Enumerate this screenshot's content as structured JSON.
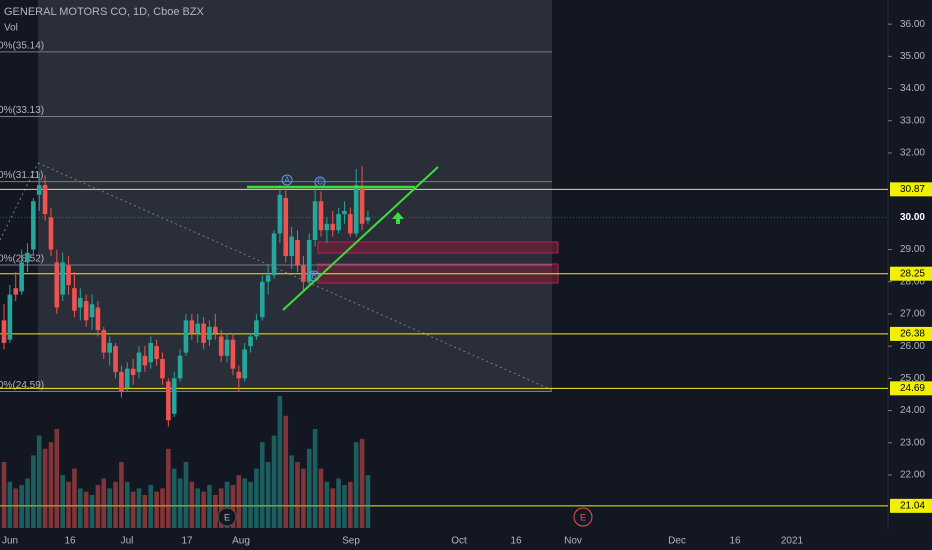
{
  "chart_data": {
    "type": "candlestick",
    "title": "GENERAL MOTORS CO, 1D, Cboe BZX",
    "subtitle": "Vol",
    "ylim": [
      20.29,
      36.75
    ],
    "yticks": [
      {
        "value": 36,
        "label": "36.00"
      },
      {
        "value": 35,
        "label": "35.00"
      },
      {
        "value": 34,
        "label": "34.00"
      },
      {
        "value": 33,
        "label": "33.00"
      },
      {
        "value": 32,
        "label": "32.00"
      },
      {
        "value": 29,
        "label": "29.00"
      },
      {
        "value": 28,
        "label": "28.00"
      },
      {
        "value": 27,
        "label": "27.00"
      },
      {
        "value": 26,
        "label": "26.00"
      },
      {
        "value": 25,
        "label": "25.00"
      },
      {
        "value": 24,
        "label": "24.00"
      },
      {
        "value": 23,
        "label": "23.00"
      },
      {
        "value": 22,
        "label": "22.00"
      }
    ],
    "xtick_labels": [
      "Jun",
      "16",
      "Jul",
      "17",
      "Aug",
      "Sep",
      "Oct",
      "16",
      "Nov",
      "Dec",
      "16",
      "2021"
    ],
    "up_color": "#26a69a",
    "down_color": "#ef5350",
    "candles": [
      [
        26.8,
        27.3,
        25.9,
        26.1
      ],
      [
        26.2,
        27.9,
        26.1,
        27.6
      ],
      [
        27.8,
        28.3,
        27.4,
        27.6
      ],
      [
        27.7,
        29.0,
        27.6,
        28.6
      ],
      [
        28.6,
        29.2,
        28.3,
        28.9
      ],
      [
        29.0,
        30.6,
        28.8,
        30.5
      ],
      [
        30.7,
        31.4,
        30.2,
        31.0
      ],
      [
        31.0,
        31.3,
        29.9,
        30.1
      ],
      [
        30.0,
        30.3,
        28.8,
        29.0
      ],
      [
        28.6,
        29.0,
        27.0,
        27.2
      ],
      [
        27.6,
        28.9,
        27.4,
        28.6
      ],
      [
        28.5,
        28.8,
        27.6,
        27.9
      ],
      [
        27.8,
        28.3,
        26.9,
        27.1
      ],
      [
        27.2,
        27.8,
        26.8,
        27.5
      ],
      [
        27.4,
        27.6,
        26.6,
        26.8
      ],
      [
        26.9,
        27.6,
        26.5,
        27.3
      ],
      [
        27.2,
        27.4,
        26.3,
        26.5
      ],
      [
        26.5,
        26.6,
        25.6,
        25.8
      ],
      [
        25.8,
        26.3,
        25.4,
        26.1
      ],
      [
        26.0,
        26.1,
        25.0,
        25.2
      ],
      [
        25.2,
        25.4,
        24.4,
        24.6
      ],
      [
        24.7,
        25.5,
        24.6,
        25.3
      ],
      [
        25.3,
        25.6,
        24.8,
        25.1
      ],
      [
        25.2,
        26.0,
        25.0,
        25.8
      ],
      [
        25.7,
        26.0,
        25.2,
        25.4
      ],
      [
        25.5,
        26.3,
        25.3,
        26.1
      ],
      [
        26.0,
        26.2,
        25.4,
        25.6
      ],
      [
        25.6,
        25.8,
        24.8,
        25.0
      ],
      [
        24.9,
        25.0,
        23.5,
        23.7
      ],
      [
        23.9,
        25.2,
        23.8,
        25.0
      ],
      [
        25.0,
        25.9,
        24.9,
        25.7
      ],
      [
        25.8,
        27.0,
        25.7,
        26.8
      ],
      [
        26.8,
        27.0,
        26.2,
        26.4
      ],
      [
        26.4,
        27.0,
        26.1,
        26.7
      ],
      [
        26.7,
        26.9,
        25.9,
        26.1
      ],
      [
        26.2,
        26.8,
        26.0,
        26.6
      ],
      [
        26.6,
        27.0,
        26.2,
        26.4
      ],
      [
        26.3,
        26.5,
        25.5,
        25.7
      ],
      [
        25.7,
        26.4,
        25.5,
        26.2
      ],
      [
        26.2,
        26.4,
        25.1,
        25.3
      ],
      [
        25.2,
        25.4,
        24.6,
        25.0
      ],
      [
        25.0,
        26.1,
        24.9,
        25.9
      ],
      [
        26.0,
        26.4,
        25.8,
        26.3
      ],
      [
        26.3,
        27.0,
        26.2,
        26.8
      ],
      [
        26.9,
        28.2,
        26.8,
        28.0
      ],
      [
        28.0,
        28.5,
        27.6,
        28.2
      ],
      [
        28.2,
        29.6,
        28.1,
        29.5
      ],
      [
        29.5,
        31.0,
        29.2,
        30.7
      ],
      [
        30.6,
        30.9,
        28.6,
        28.8
      ],
      [
        28.8,
        29.7,
        28.4,
        29.4
      ],
      [
        29.3,
        29.6,
        28.3,
        28.5
      ],
      [
        28.5,
        28.8,
        27.7,
        28.0
      ],
      [
        28.0,
        29.5,
        27.9,
        29.3
      ],
      [
        29.3,
        31.0,
        29.1,
        30.5
      ],
      [
        30.5,
        30.8,
        29.4,
        29.6
      ],
      [
        29.6,
        30.0,
        29.2,
        29.8
      ],
      [
        29.8,
        30.2,
        29.4,
        29.6
      ],
      [
        29.6,
        30.3,
        29.5,
        30.1
      ],
      [
        30.1,
        30.5,
        29.8,
        30.2
      ],
      [
        30.1,
        30.3,
        29.4,
        29.5
      ],
      [
        29.5,
        31.5,
        29.4,
        31.0
      ],
      [
        30.9,
        31.6,
        29.6,
        29.8
      ],
      [
        29.9,
        30.2,
        29.8,
        30.0
      ]
    ],
    "volume": [
      20,
      14,
      12,
      13,
      15,
      22,
      28,
      24,
      26,
      30,
      16,
      14,
      18,
      12,
      11,
      10,
      13,
      15,
      12,
      14,
      20,
      14,
      11,
      12,
      10,
      13,
      11,
      12,
      24,
      18,
      15,
      20,
      14,
      12,
      11,
      13,
      10,
      12,
      14,
      13,
      16,
      15,
      14,
      18,
      26,
      20,
      28,
      40,
      34,
      22,
      20,
      18,
      24,
      30,
      18,
      14,
      12,
      15,
      13,
      14,
      26,
      27,
      16
    ],
    "fib_levels": [
      {
        "value": 35.14,
        "label": "0%(35.14)"
      },
      {
        "value": 33.13,
        "label": "0%(33.13)"
      },
      {
        "value": 31.11,
        "label": "0%(31.11)"
      },
      {
        "value": 28.52,
        "label": "0%(28.52)"
      },
      {
        "value": 24.59,
        "label": "0%(24.59)"
      }
    ],
    "levels": [
      30.87,
      28.25,
      26.38,
      24.69,
      21.04
    ],
    "level_color": "#f0f000",
    "last_price": {
      "value": 30,
      "label": "30.00"
    },
    "wave_labels": [
      "A",
      "C",
      "B"
    ],
    "event_labels": [
      "E",
      "E"
    ]
  }
}
